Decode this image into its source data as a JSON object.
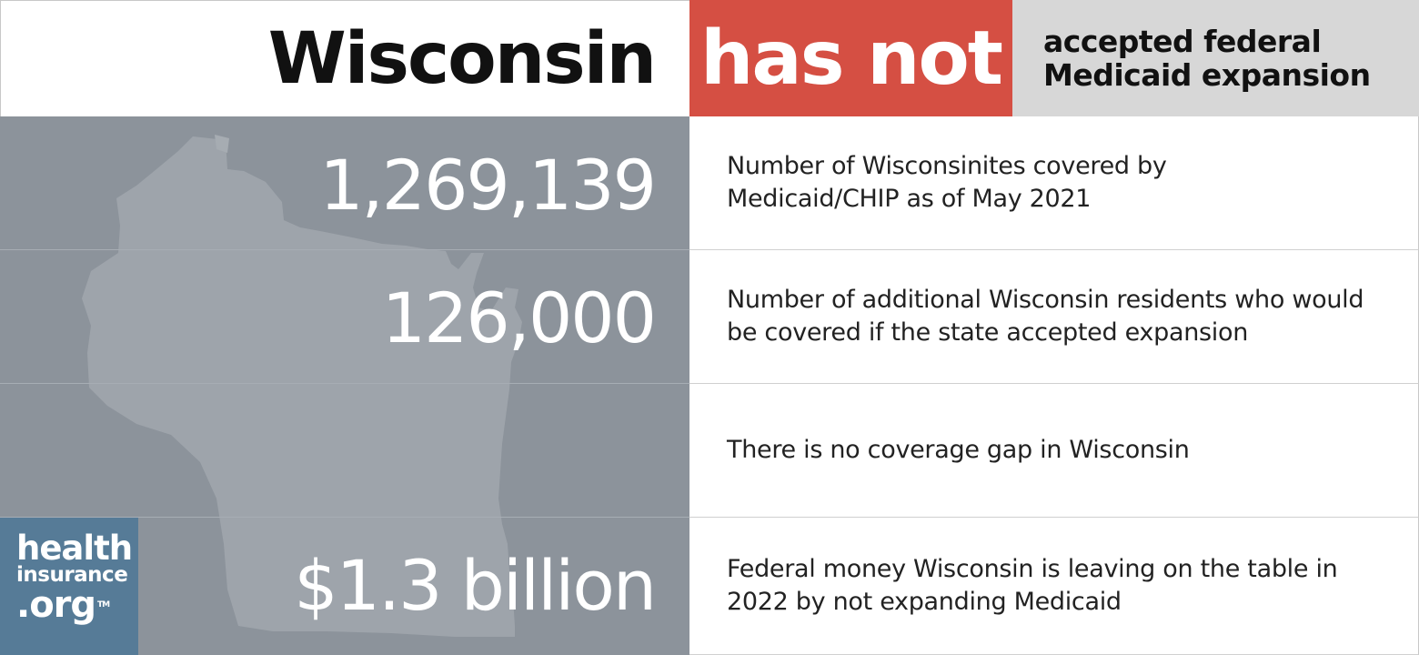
{
  "header": {
    "state": "Wisconsin",
    "status": "has not",
    "description_lines": [
      "accepted federal",
      "Medicaid expansion"
    ]
  },
  "stats": [
    {
      "value": "1,269,139",
      "description_lines": [
        "Number of Wisconsinites covered by",
        "Medicaid/CHIP as of May 2021"
      ]
    },
    {
      "value": "126,000",
      "description_lines": [
        "Number of additional Wisconsin residents who would",
        "be covered if the state accepted expansion"
      ]
    },
    {
      "value": "",
      "description_lines": [
        "There is no coverage gap in Wisconsin"
      ]
    },
    {
      "value": "$1.3 billion",
      "description_lines": [
        "Federal money Wisconsin is leaving on the table in",
        "2022 by not expanding Medicaid"
      ]
    }
  ],
  "logo": {
    "line1": "health",
    "line2": "insurance",
    "line3": ".org",
    "trademark": "TM"
  },
  "colors": {
    "status_red": "#d54f43",
    "panel_gray": "#8c939b",
    "map_fill": "#9ea4ab",
    "logo_blue": "#567b97",
    "header_desc_gray": "#d7d7d7"
  },
  "icons": {
    "map": "wisconsin-map-icon"
  }
}
